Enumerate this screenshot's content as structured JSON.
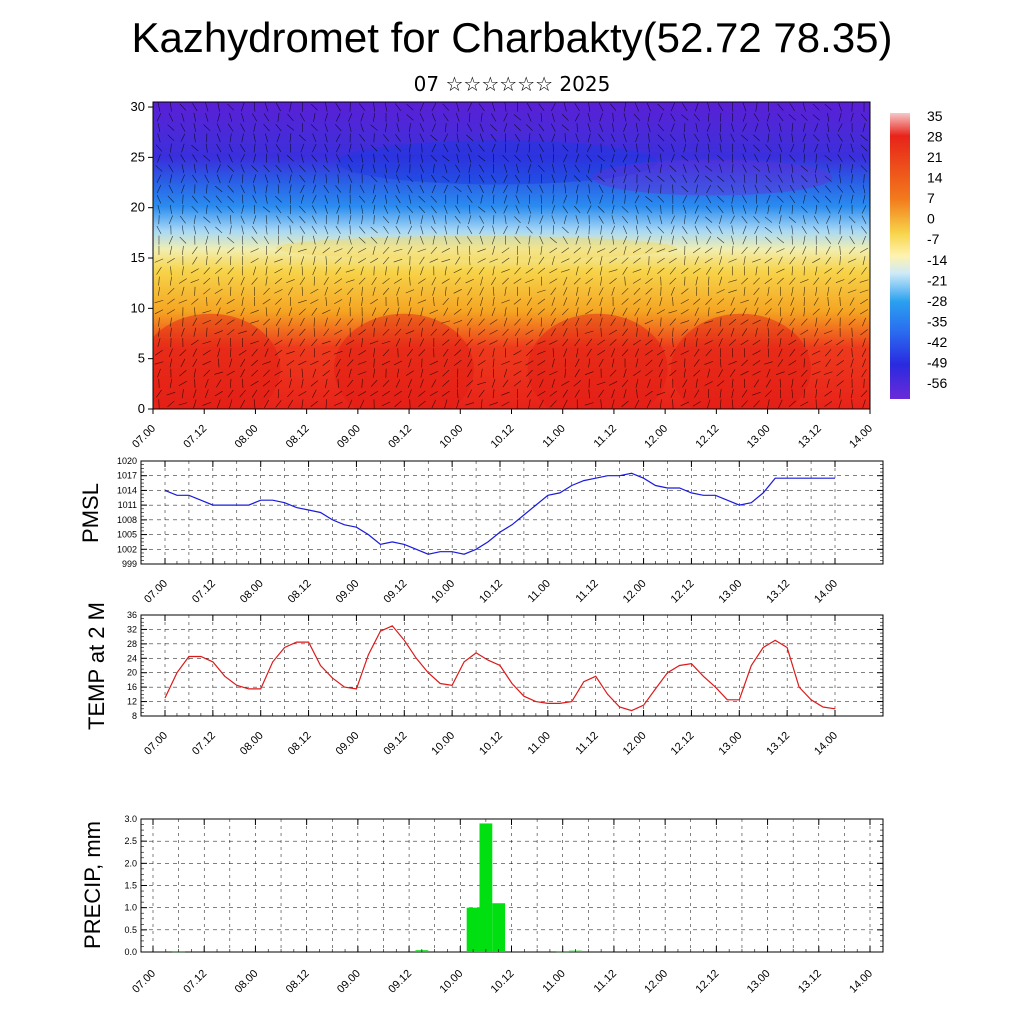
{
  "header": {
    "title": "Kazhydromet for Charbakty(52.72 78.35)",
    "subtitle": "07 ☆☆☆☆☆☆ 2025"
  },
  "chart_data": [
    {
      "type": "heatmap",
      "name": "cross-section",
      "y_ticks": [
        "0",
        "5",
        "10",
        "15",
        "20",
        "25",
        "30"
      ],
      "ylim": [
        0,
        30.5
      ],
      "x_ticks": [
        "07.00",
        "07.12",
        "08.00",
        "08.12",
        "09.00",
        "09.12",
        "10.00",
        "10.12",
        "11.00",
        "11.12",
        "12.00",
        "12.12",
        "13.00",
        "13.12",
        "14.00"
      ],
      "colorbar_labels": [
        "35",
        "28",
        "21",
        "14",
        "7",
        "0",
        "-7",
        "-14",
        "-21",
        "-28",
        "-35",
        "-42",
        "-49",
        "-56"
      ],
      "colors": {
        "top": "#5a1fd6",
        "mid_blue": "#2a6cf0",
        "light_blue": "#a8d8f5",
        "yellow": "#f7d44a",
        "orange": "#f5a623",
        "red": "#e8231a"
      }
    },
    {
      "type": "line",
      "ylabel": "PMSL",
      "ylim": [
        999,
        1020
      ],
      "y_ticks": [
        "1020",
        "1017",
        "1014",
        "1011",
        "1008",
        "1005",
        "1002",
        "999"
      ],
      "x_ticks": [
        "07.00",
        "07.12",
        "08.00",
        "08.12",
        "09.00",
        "09.12",
        "10.00",
        "10.12",
        "11.00",
        "11.12",
        "12.00",
        "12.12",
        "13.00",
        "13.12",
        "14.00"
      ],
      "color": "#1a1adc",
      "x": [
        0,
        3,
        6,
        9,
        12,
        15,
        18,
        21,
        24,
        27,
        30,
        33,
        36,
        39,
        42,
        45,
        48,
        51,
        54,
        57,
        60,
        63,
        66,
        69,
        72,
        75,
        78,
        81,
        84,
        87,
        90,
        93,
        96,
        99,
        102,
        105,
        108,
        111,
        114,
        117,
        120,
        123,
        126,
        129,
        132,
        135,
        138,
        141,
        144,
        147,
        150,
        153,
        156,
        159,
        162,
        165,
        168
      ],
      "values": [
        1014,
        1013,
        1013,
        1012,
        1011,
        1011,
        1011,
        1011,
        1012,
        1012,
        1011.5,
        1010.5,
        1010,
        1009.5,
        1008,
        1007,
        1006.5,
        1005,
        1003,
        1003.5,
        1003,
        1002,
        1001,
        1001.5,
        1001.5,
        1001,
        1002,
        1003.5,
        1005.5,
        1007,
        1009,
        1011,
        1013,
        1013.5,
        1015,
        1016,
        1016.5,
        1017,
        1017,
        1017.5,
        1016.5,
        1015,
        1014.5,
        1014.5,
        1013.5,
        1013,
        1013,
        1012,
        1011,
        1011.5,
        1013.5,
        1016.5,
        1016.5,
        1016.5,
        1016.5,
        1016.5,
        1016.5
      ]
    },
    {
      "type": "line",
      "ylabel": "TEMP at 2 M",
      "ylim": [
        8,
        36
      ],
      "y_ticks": [
        "36",
        "32",
        "28",
        "24",
        "20",
        "16",
        "12",
        "8"
      ],
      "x_ticks": [
        "07.00",
        "07.12",
        "08.00",
        "08.12",
        "09.00",
        "09.12",
        "10.00",
        "10.12",
        "11.00",
        "11.12",
        "12.00",
        "12.12",
        "13.00",
        "13.12",
        "14.00"
      ],
      "color": "#dc1a1a",
      "x": [
        0,
        3,
        6,
        9,
        12,
        15,
        18,
        21,
        24,
        27,
        30,
        33,
        36,
        39,
        42,
        45,
        48,
        51,
        54,
        57,
        60,
        63,
        66,
        69,
        72,
        75,
        78,
        81,
        84,
        87,
        90,
        93,
        96,
        99,
        102,
        105,
        108,
        111,
        114,
        117,
        120,
        123,
        126,
        129,
        132,
        135,
        138,
        141,
        144,
        147,
        150,
        153,
        156,
        159,
        162,
        165,
        168
      ],
      "values": [
        13,
        20,
        24.5,
        24.5,
        23,
        19,
        16.5,
        15.5,
        15.5,
        23,
        27,
        28.5,
        28.5,
        22,
        18.5,
        16,
        15.5,
        25,
        31.5,
        33,
        29,
        24,
        20,
        17,
        16.5,
        23,
        25.5,
        23.5,
        22,
        17,
        13.5,
        12,
        11.5,
        11.5,
        12,
        17.5,
        19,
        14,
        10.5,
        9.5,
        11,
        15.5,
        20,
        22,
        22.5,
        19,
        16,
        12.5,
        12.5,
        22,
        27,
        29,
        27,
        16,
        12.5,
        10.5,
        10
      ]
    },
    {
      "type": "bar",
      "ylabel": "PRECIP, mm",
      "ylim": [
        0,
        3.0
      ],
      "y_ticks": [
        "3.0",
        "2.5",
        "2.0",
        "1.5",
        "1.0",
        "0.5",
        "0.0"
      ],
      "x_ticks": [
        "07.00",
        "07.12",
        "08.00",
        "08.12",
        "09.00",
        "09.12",
        "10.00",
        "10.12",
        "11.00",
        "11.12",
        "12.00",
        "12.12",
        "13.00",
        "13.12",
        "14.00"
      ],
      "color": "#00e010",
      "x": [
        6,
        63,
        75,
        78,
        81,
        96,
        99
      ],
      "values": [
        0.02,
        0.04,
        1.0,
        2.9,
        1.1,
        0.02,
        0.03
      ]
    }
  ]
}
